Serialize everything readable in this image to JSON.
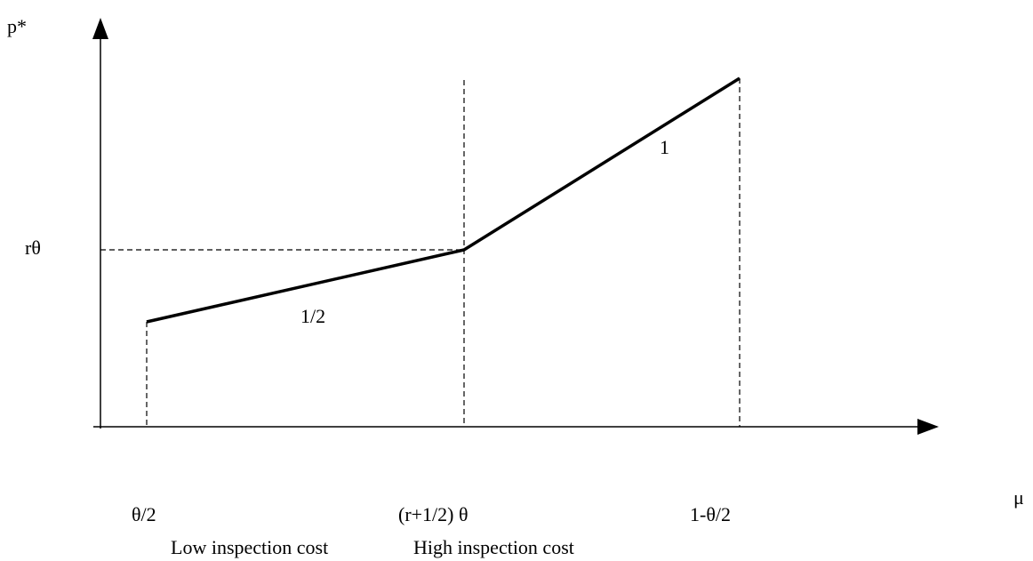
{
  "axes": {
    "y_label": "p*",
    "x_label": "μ",
    "y_mark": "rθ"
  },
  "x_marks": [
    "θ/2",
    "(r+1/2) θ",
    "1-θ/2"
  ],
  "segments": [
    "1/2",
    "1"
  ],
  "regions": [
    "Low inspection cost",
    "High inspection cost"
  ]
}
